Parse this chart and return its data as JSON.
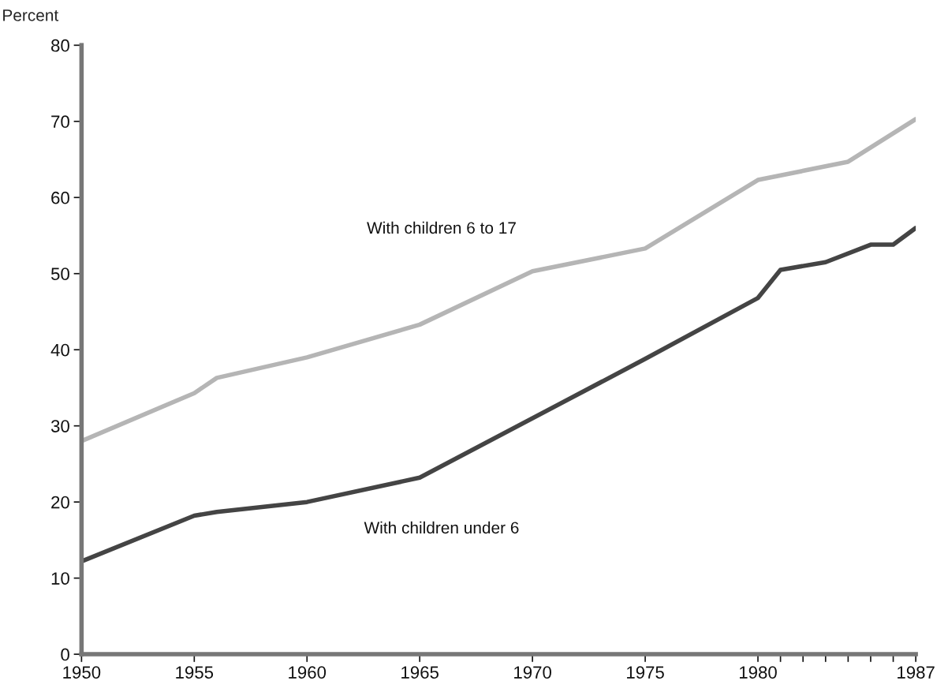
{
  "chart_data": {
    "type": "line",
    "ylabel": "Percent",
    "series": [
      {
        "name": "With children 6 to 17",
        "color": "#b5b5b5",
        "x": [
          1950,
          1955,
          1956,
          1960,
          1965,
          1970,
          1975,
          1980,
          1984,
          1987
        ],
        "values": [
          28,
          34.3,
          36.3,
          39,
          43.3,
          50.3,
          53.3,
          62.3,
          64.7,
          70.3
        ]
      },
      {
        "name": "With children under 6",
        "color": "#444444",
        "x": [
          1950,
          1955,
          1956,
          1960,
          1965,
          1975,
          1980,
          1981,
          1983,
          1985,
          1986,
          1987
        ],
        "values": [
          12.2,
          18.2,
          18.7,
          20,
          23.2,
          38.8,
          46.8,
          50.5,
          51.5,
          53.8,
          53.8,
          56
        ]
      }
    ],
    "xlim": [
      1950,
      1987
    ],
    "ylim": [
      0,
      80
    ],
    "xticks": [
      1950,
      1955,
      1960,
      1965,
      1970,
      1975,
      1980,
      {
        "value": 1981,
        "label": null
      },
      {
        "value": 1982,
        "label": null
      },
      {
        "value": 1983,
        "label": null
      },
      {
        "value": 1984,
        "label": null
      },
      {
        "value": 1985,
        "label": null
      },
      {
        "value": 1986,
        "label": null
      },
      1987
    ],
    "yticks": [
      0,
      10,
      20,
      30,
      40,
      50,
      60,
      70,
      80
    ],
    "grid": false,
    "legend": false,
    "line_style": "solid",
    "marker": "none"
  }
}
